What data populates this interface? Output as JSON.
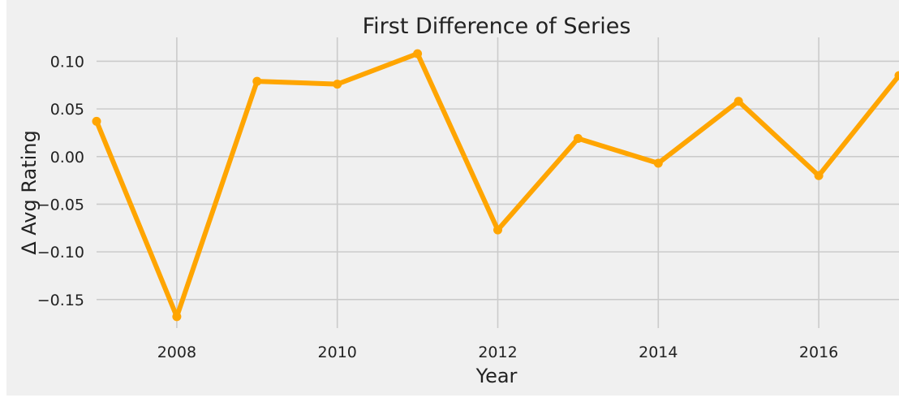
{
  "chart_data": {
    "type": "line",
    "title": "First Difference of Series",
    "xlabel": "Year",
    "ylabel": "Δ Avg Rating",
    "x": [
      2007,
      2008,
      2009,
      2010,
      2011,
      2012,
      2013,
      2014,
      2015,
      2016,
      2017
    ],
    "series": [
      {
        "values": [
          0.037,
          -0.168,
          0.079,
          0.076,
          0.108,
          -0.077,
          0.019,
          -0.007,
          0.058,
          -0.02,
          0.085
        ]
      }
    ],
    "xlim": [
      2007,
      2017
    ],
    "ylim": [
      -0.18,
      0.12
    ],
    "xticks": [
      2008,
      2010,
      2012,
      2014,
      2016
    ],
    "xtick_labels": [
      "2008",
      "2010",
      "2012",
      "2014",
      "2016"
    ],
    "yticks": [
      0.1,
      0.05,
      0.0,
      -0.05,
      -0.1,
      -0.15
    ],
    "ytick_labels": [
      "0.10",
      "0.05",
      "0.00",
      "−0.05",
      "−0.10",
      "−0.15"
    ],
    "grid": true,
    "legend": false,
    "colors": {
      "line": "#ffa500",
      "background": "#f0f0f0",
      "grid": "#cbcbcb"
    }
  }
}
